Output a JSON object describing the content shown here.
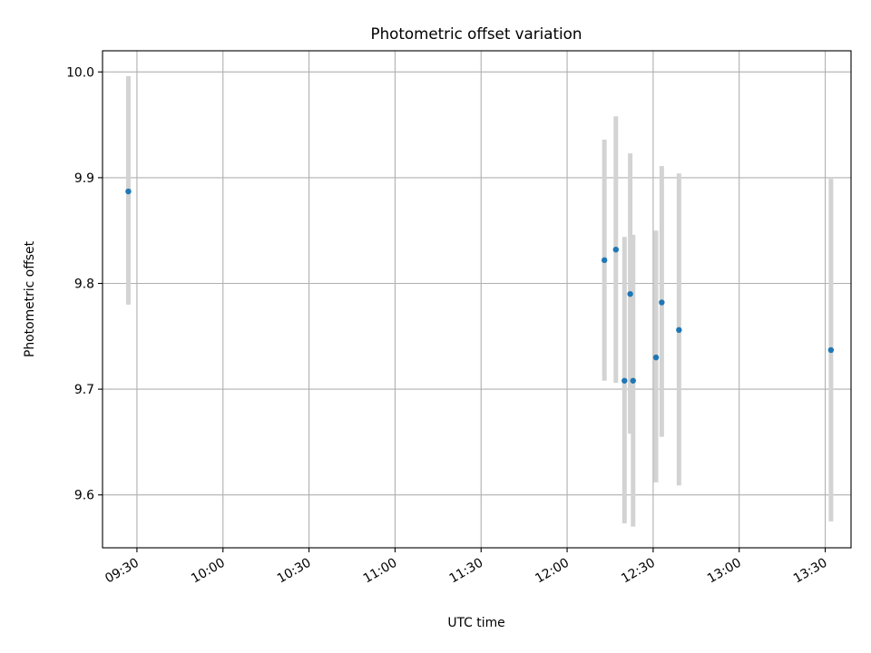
{
  "chart_data": {
    "type": "scatter",
    "title": "Photometric offset variation",
    "xlabel": "UTC time",
    "ylabel": "Photometric offset",
    "xlim": [
      "09:18",
      "13:39"
    ],
    "ylim": [
      9.55,
      10.02
    ],
    "grid": true,
    "x_ticks": [
      "09:30",
      "10:00",
      "10:30",
      "11:00",
      "11:30",
      "12:00",
      "12:30",
      "13:00",
      "13:30"
    ],
    "y_ticks": [
      "9.6",
      "9.7",
      "9.8",
      "9.9",
      "10.0"
    ],
    "marker_color": "#1f77b4",
    "errorbar_color": "#d3d3d3",
    "series": [
      {
        "points": [
          {
            "x": "09:27",
            "y": 9.887,
            "ylow": 9.78,
            "yhigh": 9.996
          },
          {
            "x": "12:13",
            "y": 9.822,
            "ylow": 9.708,
            "yhigh": 9.936
          },
          {
            "x": "12:17",
            "y": 9.832,
            "ylow": 9.706,
            "yhigh": 9.958
          },
          {
            "x": "12:20",
            "y": 9.708,
            "ylow": 9.573,
            "yhigh": 9.844
          },
          {
            "x": "12:22",
            "y": 9.79,
            "ylow": 9.658,
            "yhigh": 9.923
          },
          {
            "x": "12:23",
            "y": 9.708,
            "ylow": 9.57,
            "yhigh": 9.846
          },
          {
            "x": "12:31",
            "y": 9.73,
            "ylow": 9.612,
            "yhigh": 9.85
          },
          {
            "x": "12:33",
            "y": 9.782,
            "ylow": 9.655,
            "yhigh": 9.911
          },
          {
            "x": "12:39",
            "y": 9.756,
            "ylow": 9.609,
            "yhigh": 9.904
          },
          {
            "x": "13:32",
            "y": 9.737,
            "ylow": 9.575,
            "yhigh": 9.899
          }
        ]
      }
    ]
  }
}
